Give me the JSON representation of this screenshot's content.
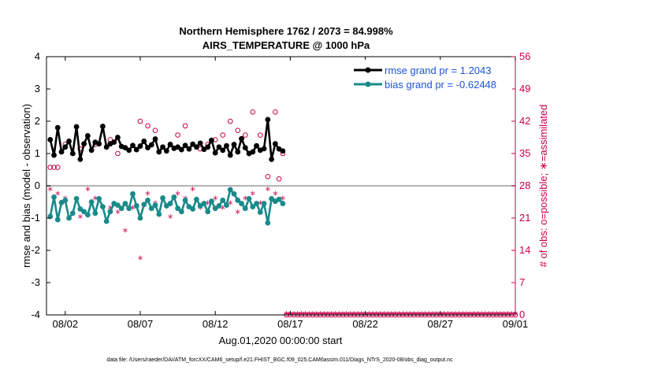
{
  "chart_data": {
    "type": "line",
    "title": "Northern Hemisphere 1762 / 2073 = 84.998%",
    "subtitle": "AIRS_TEMPERATURE @ 1000 hPa",
    "xlabel": "Aug.01,2020 00:00:00 start",
    "ylabel": "rmse and bias (model - observation)",
    "ylabel_right": "# of obs: o=possible; ∗=assimilated",
    "footnote": "data file: /Users/raeder/DAI/ATM_forcXX/CAM6_setup/f.e21.FHIST_BGC.f09_025.CAM6assim.011/Diags_NTrS_2020-08/obs_diag_output.nc",
    "xlim": [
      0.75,
      32.0
    ],
    "ylim": [
      -4,
      4
    ],
    "ylim_right": [
      0,
      56
    ],
    "x_ticks": [
      2,
      7,
      12,
      17,
      22,
      27,
      32
    ],
    "x_tick_labels": [
      "08/02",
      "08/07",
      "08/12",
      "08/17",
      "08/22",
      "08/27",
      "09/01"
    ],
    "y_ticks": [
      -4,
      -3,
      -2,
      -1,
      0,
      1,
      2,
      3,
      4
    ],
    "y_tick_labels": [
      "-4",
      "-3",
      "-2",
      "-1",
      "0",
      "1",
      "2",
      "3",
      "4"
    ],
    "y_ticks_right": [
      0,
      7,
      14,
      21,
      28,
      35,
      42,
      49,
      56
    ],
    "y_tick_labels_right": [
      "0",
      "7",
      "14",
      "21",
      "28",
      "35",
      "42",
      "49",
      "56"
    ],
    "legend_position": "top-right",
    "legend": [
      "rmse grand pr = 1.2043",
      "bias grand pr = -0.62448"
    ],
    "colors": {
      "rmse": "#000000",
      "bias": "#1a8a8a",
      "obs": "#c8004e",
      "zero_line": "#b4b4b4"
    },
    "x": [
      1.0,
      1.25,
      1.5,
      1.75,
      2.0,
      2.25,
      2.5,
      2.75,
      3.0,
      3.25,
      3.5,
      3.75,
      4.0,
      4.25,
      4.5,
      4.75,
      5.0,
      5.25,
      5.5,
      5.75,
      6.0,
      6.25,
      6.5,
      6.75,
      7.0,
      7.25,
      7.5,
      7.75,
      8.0,
      8.25,
      8.5,
      8.75,
      9.0,
      9.25,
      9.5,
      9.75,
      10.0,
      10.25,
      10.5,
      10.75,
      11.0,
      11.25,
      11.5,
      11.75,
      12.0,
      12.25,
      12.5,
      12.75,
      13.0,
      13.25,
      13.5,
      13.75,
      14.0,
      14.25,
      14.5,
      14.75,
      15.0,
      15.25,
      15.5,
      15.75,
      16.0,
      16.25,
      16.5
    ],
    "series": [
      {
        "name": "rmse grand pr = 1.2043",
        "values": [
          1.43,
          0.95,
          1.8,
          1.05,
          1.2,
          1.38,
          1.0,
          1.83,
          0.82,
          1.3,
          1.55,
          1.1,
          1.35,
          1.3,
          1.84,
          1.2,
          1.3,
          1.35,
          1.5,
          1.22,
          1.18,
          1.1,
          1.25,
          1.12,
          1.23,
          1.38,
          1.18,
          1.27,
          1.45,
          1.05,
          1.2,
          1.08,
          1.28,
          1.16,
          1.2,
          1.12,
          1.25,
          1.14,
          1.29,
          1.2,
          1.32,
          1.13,
          1.2,
          1.41,
          1.02,
          1.2,
          1.1,
          1.24,
          0.95,
          1.28,
          1.05,
          1.46,
          1.18,
          1.0,
          1.05,
          1.24,
          1.1,
          1.15,
          2.05,
          0.82,
          1.3,
          1.14,
          1.08
        ]
      },
      {
        "name": "bias grand pr = -0.62448",
        "values": [
          -0.95,
          -0.35,
          -1.05,
          -0.52,
          -0.45,
          -1.0,
          -0.85,
          -0.4,
          -0.72,
          -0.8,
          -0.9,
          -0.5,
          -0.85,
          -0.4,
          -0.65,
          -1.1,
          -0.8,
          -0.55,
          -0.6,
          -0.7,
          -0.55,
          -0.7,
          -0.25,
          -0.62,
          -1.0,
          -0.58,
          -0.45,
          -0.7,
          -0.6,
          -0.88,
          -0.38,
          -0.62,
          -0.55,
          -0.35,
          -0.7,
          -0.8,
          -0.45,
          -0.65,
          -0.72,
          -0.42,
          -0.62,
          -0.55,
          -0.8,
          -0.48,
          -0.7,
          -0.62,
          -0.45,
          -0.6,
          -0.12,
          -0.25,
          -0.45,
          -0.55,
          -0.7,
          -0.4,
          -0.65,
          -0.55,
          -0.82,
          -0.55,
          -1.15,
          -0.4,
          -0.48,
          -0.42,
          -0.55
        ]
      }
    ],
    "obs_possible": [
      [
        1.0,
        32.0
      ],
      [
        1.25,
        32.0
      ],
      [
        1.5,
        32.0
      ],
      [
        2.0,
        37.0
      ],
      [
        3.0,
        36.0
      ],
      [
        4.0,
        37.0
      ],
      [
        5.0,
        38.0
      ],
      [
        5.5,
        35.0
      ],
      [
        7.0,
        42.0
      ],
      [
        7.5,
        41.0
      ],
      [
        8.0,
        40.0
      ],
      [
        9.0,
        37.0
      ],
      [
        9.5,
        39.0
      ],
      [
        10.0,
        41.0
      ],
      [
        11.0,
        36.0
      ],
      [
        11.5,
        37.0
      ],
      [
        12.0,
        38.0
      ],
      [
        12.5,
        39.0
      ],
      [
        13.0,
        42.0
      ],
      [
        13.5,
        40.0
      ],
      [
        14.0,
        39.0
      ],
      [
        14.5,
        44.0
      ],
      [
        15.0,
        39.0
      ],
      [
        15.5,
        30.0
      ],
      [
        16.0,
        44.0
      ],
      [
        16.25,
        29.5
      ],
      [
        16.5,
        35.0
      ]
    ],
    "obs_assimilated": [
      [
        1.0,
        27.0
      ],
      [
        1.5,
        26.0
      ],
      [
        2.0,
        25.0
      ],
      [
        3.0,
        21.0
      ],
      [
        3.5,
        27.0
      ],
      [
        4.0,
        25.0
      ],
      [
        5.0,
        23.0
      ],
      [
        5.5,
        22.0
      ],
      [
        6.0,
        18.0
      ],
      [
        6.5,
        23.0
      ],
      [
        7.0,
        12.0
      ],
      [
        7.5,
        26.0
      ],
      [
        8.0,
        24.0
      ],
      [
        8.5,
        25.0
      ],
      [
        9.0,
        21.0
      ],
      [
        9.5,
        26.0
      ],
      [
        10.0,
        25.0
      ],
      [
        10.5,
        27.0
      ],
      [
        11.0,
        23.0
      ],
      [
        11.5,
        24.0
      ],
      [
        12.0,
        25.0
      ],
      [
        12.5,
        23.0
      ],
      [
        13.0,
        24.0
      ],
      [
        13.5,
        22.0
      ],
      [
        14.0,
        25.0
      ],
      [
        14.5,
        26.0
      ],
      [
        15.0,
        24.0
      ],
      [
        15.5,
        27.0
      ],
      [
        16.0,
        26.0
      ],
      [
        16.5,
        25.0
      ]
    ],
    "obs_zero_range": [
      16.75,
      32.0
    ]
  }
}
